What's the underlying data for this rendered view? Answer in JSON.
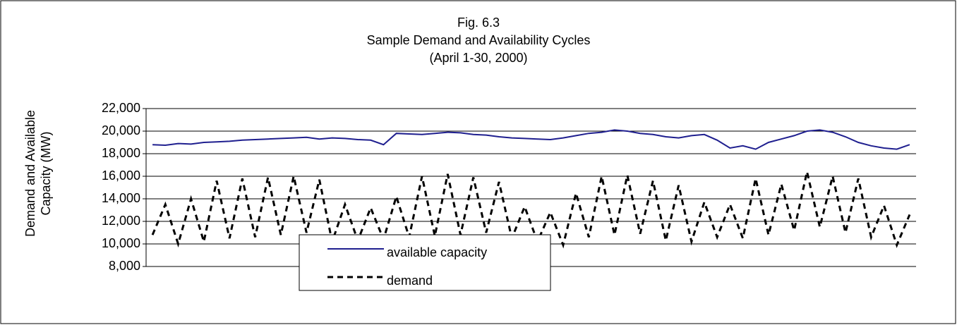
{
  "chart_data": {
    "type": "line",
    "title": [
      "Fig. 6.3",
      "Sample Demand and Availability Cycles",
      "(April 1-30, 2000)"
    ],
    "y_label": [
      "Demand and Available",
      "Capacity (MW)"
    ],
    "categories": [
      null,
      null,
      null,
      null,
      null,
      null,
      null,
      null,
      null,
      null,
      null,
      null,
      null,
      null,
      null,
      null,
      null,
      null,
      null,
      null,
      null,
      null,
      null,
      null,
      null,
      null,
      null,
      null,
      null,
      null,
      null,
      null,
      null,
      null,
      null,
      null,
      null,
      null,
      null,
      null,
      null,
      null,
      null,
      null,
      null,
      null,
      null,
      null,
      null,
      null,
      null,
      null,
      null,
      null,
      null,
      null,
      null,
      null,
      null,
      null
    ],
    "series": [
      {
        "name": "available capacity",
        "color": "#1f1f8f",
        "dashed": false,
        "values": [
          18800,
          18750,
          18900,
          18850,
          19000,
          19050,
          19100,
          19200,
          19250,
          19300,
          19350,
          19400,
          19450,
          19300,
          19400,
          19350,
          19250,
          19200,
          18800,
          19800,
          19750,
          19700,
          19800,
          19900,
          19850,
          19700,
          19650,
          19500,
          19400,
          19350,
          19300,
          19250,
          19400,
          19600,
          19800,
          19900,
          20100,
          20000,
          19800,
          19700,
          19500,
          19400,
          19600,
          19700,
          19200,
          18500,
          18700,
          18400,
          19000,
          19300,
          19600,
          20000,
          20100,
          19900,
          19500,
          19000,
          18700,
          18500,
          18400,
          18800
        ]
      },
      {
        "name": "demand",
        "color": "#000000",
        "dashed": true,
        "values": [
          10800,
          13500,
          10000,
          14000,
          10200,
          15600,
          10500,
          15800,
          10600,
          15900,
          10800,
          16000,
          11000,
          15700,
          10200,
          13500,
          10300,
          13200,
          10400,
          14200,
          10600,
          16000,
          10700,
          16200,
          10800,
          15900,
          11000,
          15500,
          10500,
          13300,
          10200,
          12800,
          9900,
          14500,
          10600,
          16000,
          10800,
          16100,
          10900,
          15600,
          10300,
          15200,
          10200,
          13700,
          10600,
          13500,
          10500,
          15800,
          10800,
          15300,
          11200,
          16400,
          11500,
          16000,
          11000,
          15800,
          10600,
          13400,
          9900,
          12600
        ]
      }
    ],
    "ylim": [
      8000,
      22000
    ],
    "yticks": [
      {
        "value": 8000,
        "label": "8,000"
      },
      {
        "value": 10000,
        "label": "10,000"
      },
      {
        "value": 12000,
        "label": "12,000"
      },
      {
        "value": 14000,
        "label": "14,000"
      },
      {
        "value": 16000,
        "label": "16,000"
      },
      {
        "value": 18000,
        "label": "18,000"
      },
      {
        "value": 20000,
        "label": "20,000"
      },
      {
        "value": 22000,
        "label": "22,000"
      }
    ],
    "grid": true,
    "legend": "bottom"
  }
}
